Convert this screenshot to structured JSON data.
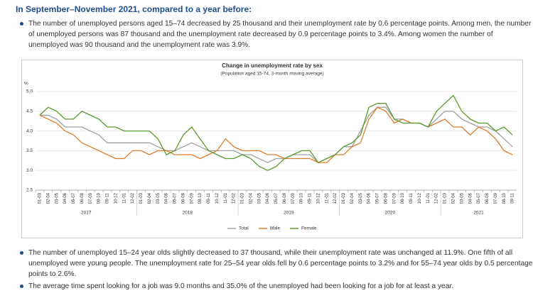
{
  "heading": "In September–November 2021, compared to a year before:",
  "bullets_top": [
    "The number of unemployed persons aged 15–74 decreased by 25 thousand and their unemployment rate by 0.6 percentage points. Among men, the number of unemployed persons was 87 thousand and the unemployment rate decreased by 0.9 percentage points to 3.4%. Among women the number of unemployed was 90 thousand and the unemployment rate was 3.9%."
  ],
  "chart_data": {
    "type": "line",
    "title": "Change in unemployment rate by sex",
    "subtitle": "(Population aged 15-74, 3-month moving average)",
    "y_label": "%",
    "categories": [
      "01-03",
      "02-04",
      "03-05",
      "04-06",
      "05-07",
      "06-08",
      "07-09",
      "08-10",
      "09-11",
      "10-12",
      "11-01",
      "12-02",
      "01-03",
      "02-04",
      "03-05",
      "04-06",
      "05-07",
      "06-08",
      "07-09",
      "08-10",
      "09-11",
      "10-12",
      "11-01",
      "12-02",
      "01-03",
      "02-04",
      "03-05",
      "04-06",
      "05-07",
      "06-08",
      "07-09",
      "08-10",
      "09-11",
      "10-12",
      "11-01",
      "12-02",
      "01-03",
      "02-04",
      "03-05",
      "04-06",
      "05-07",
      "06-08",
      "07-09",
      "08-10",
      "09-11",
      "10-12",
      "11-01",
      "12-02",
      "01-03",
      "02-04",
      "03-05",
      "04-06",
      "05-07",
      "06-08",
      "07-09",
      "08-10",
      "09-11"
    ],
    "year_labels": [
      "2017",
      "2018",
      "2019",
      "2020",
      "2021"
    ],
    "ylim": [
      2.5,
      5.0
    ],
    "yticks": [
      {
        "value": 2.5,
        "label": "2.5"
      },
      {
        "value": 3,
        "label": "3.0"
      },
      {
        "value": 3.5,
        "label": "3.5"
      },
      {
        "value": 4,
        "label": "4.0"
      },
      {
        "value": 4.5,
        "label": "4.5"
      },
      {
        "value": 5,
        "label": "5.0"
      }
    ],
    "grid": true,
    "series": [
      {
        "name": "Total",
        "color": "#a0a0a0",
        "values": [
          4.4,
          4.4,
          4.3,
          4.1,
          4.1,
          4.1,
          4.0,
          3.9,
          3.7,
          3.7,
          3.7,
          3.7,
          3.7,
          3.7,
          3.6,
          3.5,
          3.5,
          3.6,
          3.7,
          3.6,
          3.5,
          3.5,
          3.5,
          3.5,
          3.4,
          3.4,
          3.3,
          3.2,
          3.3,
          3.3,
          3.4,
          3.4,
          3.4,
          3.2,
          3.3,
          3.4,
          3.6,
          3.6,
          4.0,
          4.4,
          4.6,
          4.6,
          4.3,
          4.3,
          4.2,
          4.2,
          4.1,
          4.3,
          4.5,
          4.5,
          4.3,
          4.2,
          4.1,
          4.1,
          4.0,
          3.8,
          3.6
        ]
      },
      {
        "name": "Male",
        "color": "#e07b2a",
        "values": [
          4.4,
          4.3,
          4.2,
          4.0,
          3.9,
          3.7,
          3.6,
          3.5,
          3.4,
          3.3,
          3.3,
          3.5,
          3.5,
          3.4,
          3.5,
          3.5,
          3.4,
          3.4,
          3.4,
          3.3,
          3.4,
          3.5,
          3.8,
          3.6,
          3.5,
          3.5,
          3.5,
          3.4,
          3.4,
          3.3,
          3.3,
          3.3,
          3.3,
          3.2,
          3.2,
          3.4,
          3.4,
          3.6,
          3.7,
          4.3,
          4.6,
          4.5,
          4.2,
          4.3,
          4.2,
          4.2,
          4.1,
          4.2,
          4.3,
          4.1,
          4.1,
          3.9,
          4.1,
          4.0,
          3.8,
          3.5,
          3.4
        ]
      },
      {
        "name": "Female",
        "color": "#5a9a2e",
        "values": [
          4.4,
          4.6,
          4.5,
          4.3,
          4.3,
          4.5,
          4.4,
          4.3,
          4.1,
          4.1,
          4.0,
          4.0,
          4.0,
          4.0,
          3.8,
          3.4,
          3.5,
          3.9,
          4.1,
          3.8,
          3.5,
          3.4,
          3.3,
          3.3,
          3.4,
          3.3,
          3.1,
          3.0,
          3.1,
          3.3,
          3.4,
          3.5,
          3.5,
          3.2,
          3.3,
          3.4,
          3.6,
          3.7,
          3.9,
          4.6,
          4.7,
          4.7,
          4.3,
          4.2,
          4.2,
          4.2,
          4.1,
          4.5,
          4.7,
          4.9,
          4.5,
          4.3,
          4.2,
          4.2,
          4.0,
          4.1,
          3.9
        ]
      }
    ]
  },
  "bullets_bottom": [
    "The number of unemployed 15–24 year olds slightly decreased to 37 thousand, while their unemployment rate was unchanged at 11.9%. One fifth of all unemployed were young people. The unemployment rate for 25–54 year olds fell by 0.6 percentage points to 3.2% and for 55–74 year olds by 0.5 percentage points to 2.6%.",
    "The average time spent looking for a job was 9.0 months and 35.0% of the unemployed had been looking for a job for at least a year."
  ]
}
